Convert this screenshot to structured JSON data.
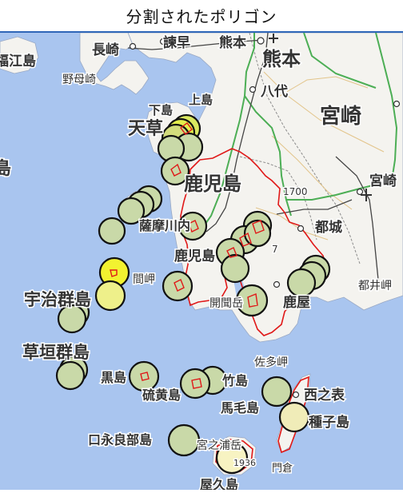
{
  "header": {
    "title": "分割されたポリゴン"
  },
  "map": {
    "colors": {
      "sea": "#a9c5ef",
      "land": "#f4f3ef",
      "highway": "#4cae55",
      "rail": "#444444",
      "polygon_stroke": "#e01818",
      "circle_fill_default": "#c9d9a8",
      "circle_fill_highlight": "#f2f230",
      "circle_fill_pale": "#f7f3c2",
      "circle_stroke": "#111111"
    },
    "labels": [
      {
        "text": "分割されたポリゴン"
      },
      {
        "text": "長崎"
      },
      {
        "text": "諫早"
      },
      {
        "text": "熊本"
      },
      {
        "text": "熊本"
      },
      {
        "text": "福江島"
      },
      {
        "text": "野母崎"
      },
      {
        "text": "八代"
      },
      {
        "text": "宮崎"
      },
      {
        "text": "天草"
      },
      {
        "text": "下島"
      },
      {
        "text": "上島"
      },
      {
        "text": "島"
      },
      {
        "text": "鹿児島"
      },
      {
        "text": "宮崎"
      },
      {
        "text": "1700"
      },
      {
        "text": "都城"
      },
      {
        "text": "薩摩川内"
      },
      {
        "text": "鹿児島"
      },
      {
        "text": "7"
      },
      {
        "text": "都井岬"
      },
      {
        "text": "間岬"
      },
      {
        "text": "宇治群島"
      },
      {
        "text": "鹿屋"
      },
      {
        "text": "開聞岳"
      },
      {
        "text": "草垣群島"
      },
      {
        "text": "佐多岬"
      },
      {
        "text": "黒島"
      },
      {
        "text": "硫黄島"
      },
      {
        "text": "竹島"
      },
      {
        "text": "馬毛島"
      },
      {
        "text": "西之表"
      },
      {
        "text": "種子島"
      },
      {
        "text": "口永良部島"
      },
      {
        "text": "宮之浦岳"
      },
      {
        "text": "1936"
      },
      {
        "text": "屋久島"
      },
      {
        "text": "門倉"
      }
    ]
  }
}
